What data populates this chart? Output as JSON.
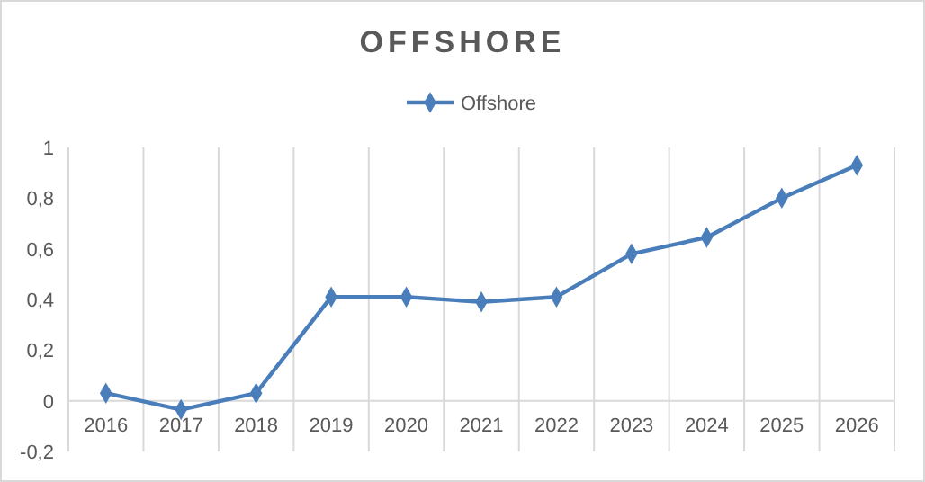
{
  "chart_data": {
    "type": "line",
    "title": "OFFSHORE",
    "categories": [
      "2016",
      "2017",
      "2018",
      "2019",
      "2020",
      "2021",
      "2022",
      "2023",
      "2024",
      "2025",
      "2026"
    ],
    "series": [
      {
        "name": "Offshore",
        "color": "#4a7ebb",
        "values": [
          0.03,
          -0.035,
          0.03,
          0.41,
          0.41,
          0.39,
          0.41,
          0.58,
          0.645,
          0.8,
          0.93
        ]
      }
    ],
    "ylim": [
      -0.2,
      1
    ],
    "yticks": [
      {
        "value": -0.2,
        "label": "-0,2"
      },
      0,
      {
        "value": 0.2,
        "label": "0,2"
      },
      {
        "value": 0.4,
        "label": "0,4"
      },
      {
        "value": 0.6,
        "label": "0,6"
      },
      {
        "value": 0.8,
        "label": "0,8"
      },
      1
    ],
    "grid": "x",
    "legend": "top",
    "marker": "diamond",
    "line_style": "solid"
  }
}
